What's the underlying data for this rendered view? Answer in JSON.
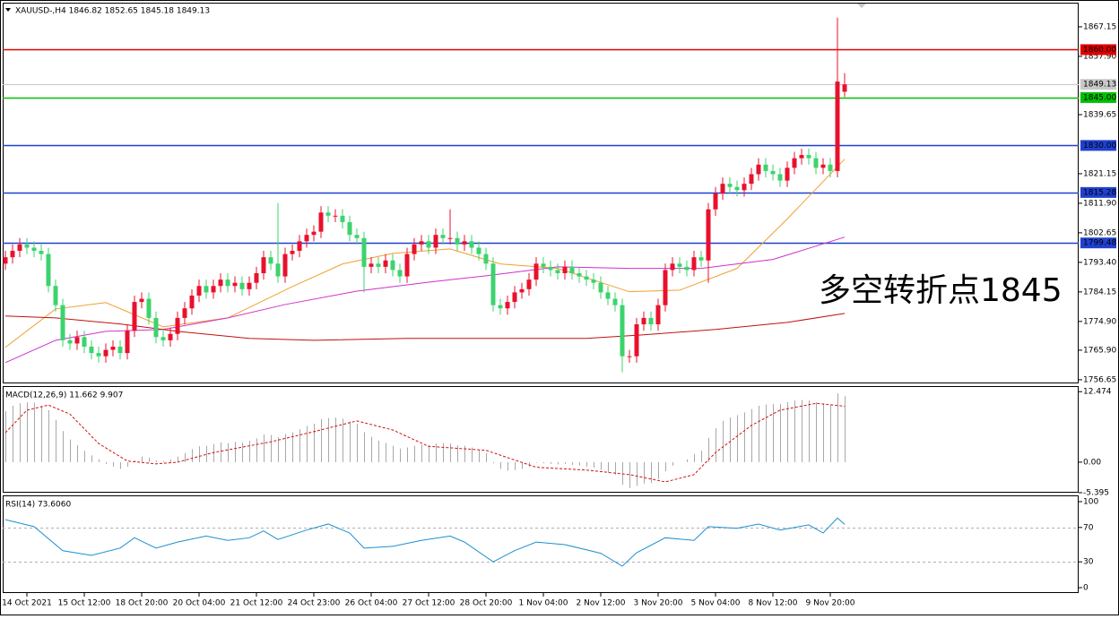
{
  "chart_data": [
    {
      "type": "candlestick",
      "title": "XAUUSD-,H4  1846.82 1852.65 1845.18 1849.13",
      "annotation": "多空转折点1845",
      "categories": [
        null,
        null,
        null,
        "14 Oct 2021",
        null,
        null,
        null,
        null,
        null,
        null,
        null,
        "15 Oct 12:00",
        null,
        null,
        null,
        null,
        null,
        null,
        null,
        "18 Oct 20:00",
        null,
        null,
        null,
        null,
        null,
        null,
        null,
        "20 Oct 04:00",
        null,
        null,
        null,
        null,
        null,
        null,
        null,
        "21 Oct 12:00",
        null,
        null,
        null,
        null,
        null,
        null,
        null,
        "24 Oct 23:00",
        null,
        null,
        null,
        null,
        null,
        null,
        null,
        "26 Oct 04:00",
        null,
        null,
        null,
        null,
        null,
        null,
        null,
        "27 Oct 12:00",
        null,
        null,
        null,
        null,
        null,
        null,
        null,
        "28 Oct 20:00",
        null,
        null,
        null,
        null,
        null,
        null,
        null,
        "1 Nov 04:00",
        null,
        null,
        null,
        null,
        null,
        null,
        null,
        "2 Nov 12:00",
        null,
        null,
        null,
        null,
        null,
        null,
        null,
        "3 Nov 20:00",
        null,
        null,
        null,
        null,
        null,
        null,
        null,
        "5 Nov 04:00",
        null,
        null,
        null,
        null,
        null,
        null,
        null,
        "8 Nov 12:00",
        null,
        null,
        null,
        null,
        null,
        null,
        null,
        "9 Nov 20:00",
        null,
        null
      ],
      "open": [
        1793,
        1795,
        1797,
        1799,
        1798,
        1797,
        1796,
        1786,
        1780,
        1769,
        1768,
        1770,
        1767,
        1765,
        1764,
        1766,
        1767,
        1765,
        1772,
        1781,
        1782,
        1776,
        1770,
        1769,
        1771,
        1776,
        1779,
        1783,
        1786,
        1784,
        1786,
        1788,
        1786,
        1787,
        1785,
        1787,
        1790,
        1795,
        1793,
        1789,
        1796,
        1797,
        1800,
        1802,
        1803,
        1809,
        1808,
        1808,
        1806,
        1802,
        1801,
        1792,
        1793,
        1792,
        1794,
        1791,
        1789,
        1796,
        1799,
        1800,
        1798,
        1802,
        1801,
        1801,
        1799,
        1800,
        1798,
        1796,
        1793,
        1780,
        1779,
        1781,
        1784,
        1785,
        1788,
        1793,
        1792,
        1791,
        1790,
        1792,
        1790,
        1789,
        1788,
        1787,
        1784,
        1782,
        1780,
        1764,
        1764,
        1774,
        1776,
        1774,
        1780,
        1791,
        1793,
        1792,
        1791,
        1795,
        1794,
        1810,
        1815,
        1818,
        1817,
        1816,
        1818,
        1821,
        1824,
        1822,
        1821,
        1819,
        1823,
        1826,
        1827,
        1826,
        1823,
        1824,
        1822,
        1846.82
      ],
      "high": [
        1797,
        1799,
        1801,
        1801,
        1800,
        1799,
        1798,
        1788,
        1782,
        1771,
        1772,
        1772,
        1769,
        1767,
        1768,
        1769,
        1769,
        1774,
        1783,
        1784,
        1784,
        1778,
        1772,
        1773,
        1778,
        1781,
        1785,
        1788,
        1788,
        1788,
        1790,
        1790,
        1789,
        1789,
        1789,
        1792,
        1797,
        1797,
        1812,
        1798,
        1799,
        1802,
        1804,
        1805,
        1811,
        1811,
        1810,
        1810,
        1808,
        1804,
        1803,
        1795,
        1795,
        1796,
        1796,
        1793,
        1798,
        1801,
        1802,
        1802,
        1804,
        1804,
        1810,
        1803,
        1802,
        1802,
        1800,
        1798,
        1795,
        1782,
        1783,
        1786,
        1787,
        1790,
        1795,
        1795,
        1794,
        1793,
        1794,
        1794,
        1792,
        1791,
        1790,
        1789,
        1786,
        1784,
        1782,
        1766,
        1776,
        1778,
        1778,
        1782,
        1793,
        1795,
        1795,
        1794,
        1797,
        1797,
        1812,
        1817,
        1820,
        1820,
        1819,
        1820,
        1823,
        1826,
        1826,
        1824,
        1823,
        1825,
        1828,
        1829,
        1829,
        1828,
        1826,
        1826,
        1870,
        1852.65
      ],
      "low": [
        1791,
        1793,
        1795,
        1796,
        1795,
        1794,
        1784,
        1778,
        1767,
        1766,
        1766,
        1765,
        1763,
        1762,
        1762,
        1764,
        1763,
        1763,
        1770,
        1779,
        1774,
        1768,
        1767,
        1767,
        1769,
        1774,
        1777,
        1781,
        1782,
        1782,
        1784,
        1784,
        1784,
        1783,
        1783,
        1785,
        1788,
        1791,
        1787,
        1787,
        1794,
        1795,
        1798,
        1800,
        1801,
        1806,
        1806,
        1804,
        1800,
        1799,
        1784,
        1790,
        1790,
        1790,
        1789,
        1787,
        1787,
        1794,
        1797,
        1796,
        1796,
        1799,
        1799,
        1797,
        1797,
        1796,
        1794,
        1791,
        1778,
        1777,
        1777,
        1779,
        1782,
        1783,
        1786,
        1790,
        1789,
        1788,
        1788,
        1788,
        1787,
        1786,
        1785,
        1782,
        1780,
        1778,
        1759,
        1762,
        1762,
        1772,
        1772,
        1772,
        1778,
        1789,
        1790,
        1789,
        1789,
        1792,
        1787,
        1808,
        1813,
        1815,
        1814,
        1814,
        1816,
        1819,
        1820,
        1819,
        1817,
        1817,
        1821,
        1824,
        1824,
        1821,
        1821,
        1820,
        1820,
        1845.18
      ],
      "close": [
        1795,
        1797,
        1799,
        1798,
        1797,
        1796,
        1786,
        1780,
        1769,
        1768,
        1770,
        1767,
        1765,
        1764,
        1766,
        1767,
        1765,
        1772,
        1781,
        1782,
        1776,
        1770,
        1769,
        1771,
        1776,
        1779,
        1783,
        1786,
        1784,
        1786,
        1788,
        1786,
        1787,
        1785,
        1787,
        1790,
        1795,
        1793,
        1789,
        1796,
        1797,
        1800,
        1802,
        1803,
        1809,
        1808,
        1808,
        1806,
        1802,
        1801,
        1792,
        1793,
        1792,
        1794,
        1791,
        1789,
        1796,
        1799,
        1800,
        1798,
        1802,
        1801,
        1801,
        1799,
        1800,
        1798,
        1796,
        1793,
        1780,
        1779,
        1781,
        1784,
        1785,
        1788,
        1793,
        1792,
        1791,
        1790,
        1792,
        1790,
        1789,
        1788,
        1787,
        1784,
        1782,
        1780,
        1764,
        1764,
        1774,
        1776,
        1774,
        1780,
        1791,
        1793,
        1792,
        1791,
        1795,
        1794,
        1810,
        1815,
        1818,
        1817,
        1816,
        1818,
        1821,
        1824,
        1822,
        1821,
        1819,
        1823,
        1826,
        1827,
        1826,
        1823,
        1824,
        1822,
        1850,
        1849.13
      ],
      "up_color": "#e8112d",
      "down_color": "#3cd36d",
      "series": [
        {
          "color": "#f0a030",
          "x": [
            0,
            7,
            14,
            22,
            31,
            40,
            47,
            54,
            62,
            69,
            77,
            87,
            94,
            102,
            109,
            117
          ],
          "values": [
            1766.8,
            1778.8,
            1780.8,
            1773.2,
            1776,
            1785.8,
            1792.9,
            1796.2,
            1797.6,
            1792.9,
            1791.5,
            1784.2,
            1784.7,
            1791.5,
            1807,
            1825.7
          ]
        },
        {
          "color": "#d030d0",
          "x": [
            0,
            7,
            14,
            22,
            31,
            39,
            49,
            59,
            67,
            77,
            87,
            97,
            107,
            117
          ],
          "values": [
            1762,
            1769,
            1771.8,
            1772.4,
            1776,
            1780.2,
            1784.4,
            1787.2,
            1789.2,
            1792,
            1791.5,
            1791.5,
            1794.3,
            1801.3
          ]
        },
        {
          "color": "#c01010",
          "x": [
            0,
            7,
            16,
            24,
            34,
            43,
            56,
            68,
            81,
            89,
            99,
            109,
            117
          ],
          "values": [
            1776.6,
            1776,
            1774.1,
            1771.8,
            1769.6,
            1769,
            1769.6,
            1769.6,
            1769.6,
            1770.7,
            1772.4,
            1774.6,
            1777.4
          ]
        }
      ],
      "levels": [
        {
          "value": 1860,
          "label": "1860.00",
          "color": "#e00000",
          "text_color": "#ffffff"
        },
        {
          "value": 1849.13,
          "color": "#c8c8c8",
          "text_color": "#000000"
        },
        {
          "value": 1845,
          "label": "1845.00",
          "color": "#00c000",
          "text_color": "#ffffff"
        },
        {
          "value": 1830,
          "label": "1830.00",
          "color": "#2040d0",
          "text_color": "#ffffff"
        },
        {
          "value": 1815.28,
          "color": "#2040d0",
          "text_color": "#ffffff"
        },
        {
          "value": 1799.48,
          "color": "#2040d0",
          "text_color": "#ffffff"
        }
      ],
      "ylim": [
        1755.5,
        1874.7
      ],
      "yticks": [
        1867.15,
        {
          "value": 1857.9,
          "label": "1857.90"
        },
        1839.65,
        1821.15,
        {
          "value": 1811.9,
          "label": "1811.90"
        },
        1802.65,
        {
          "value": 1793.4,
          "label": "1793.40"
        },
        1784.15,
        {
          "value": 1774.9,
          "label": "1774.90"
        },
        {
          "value": 1765.9,
          "label": "1765.90"
        },
        1756.65
      ]
    },
    {
      "type": "macd",
      "title": "MACD(12,26,9) 11.662 9.907",
      "color": "#a8a8a8",
      "values": [
        9,
        10,
        10.4,
        10.6,
        10.5,
        10,
        9.2,
        7.5,
        5.5,
        4,
        3,
        2,
        1.2,
        0.5,
        -0.3,
        -0.8,
        -1.2,
        -0.8,
        0.3,
        1,
        0.8,
        0.3,
        0.2,
        0.5,
        1,
        1.6,
        2.3,
        2.8,
        2.9,
        3.2,
        3.5,
        3.4,
        3.6,
        3.5,
        3.8,
        4.2,
        4.9,
        4.8,
        4.4,
        5,
        5.3,
        5.8,
        6.4,
        6.8,
        7.6,
        7.8,
        7.9,
        7.7,
        7.2,
        6.8,
        5.3,
        4.5,
        3.8,
        3.4,
        2.9,
        2.4,
        2.6,
        2.9,
        3.1,
        3,
        3.3,
        3.4,
        3.3,
        3,
        2.9,
        2.6,
        2.2,
        1.6,
        -0.2,
        -1.2,
        -1.5,
        -1.4,
        -1.2,
        -0.8,
        -0.1,
        -0.2,
        -0.3,
        -0.4,
        -0.3,
        -0.5,
        -0.6,
        -0.8,
        -1,
        -1.4,
        -1.8,
        -2.2,
        -4,
        -4.6,
        -4.2,
        -3.8,
        -3.7,
        -3,
        -1.6,
        -0.6,
        0,
        0.5,
        1.5,
        2,
        4.3,
        6,
        7.3,
        7.9,
        8.3,
        8.8,
        9.4,
        10,
        10.2,
        10.3,
        10.3,
        10.6,
        10.9,
        11,
        10.9,
        10.6,
        10.4,
        10.2,
        12.2,
        11.662
      ],
      "series": [
        {
          "color": "#d01010",
          "dash": true,
          "x": [
            0,
            3,
            6,
            9,
            13,
            17,
            21,
            24,
            29,
            37,
            43,
            49,
            54,
            59,
            67,
            74,
            81,
            87,
            92,
            96,
            99,
            104,
            108,
            113,
            117
          ],
          "values": [
            5.2,
            9.2,
            10.1,
            8.5,
            3.3,
            0.2,
            -0.3,
            0,
            1.7,
            3.6,
            5.4,
            7.3,
            5.7,
            2.8,
            2.1,
            -0.9,
            -1.4,
            -2.2,
            -3.5,
            -2.2,
            1.7,
            6.5,
            9.2,
            10.4,
            9.907
          ]
        }
      ],
      "ylim": [
        -5.4,
        13.3
      ],
      "yticks": [
        12.474,
        {
          "value": 0,
          "label": "0.00"
        },
        -5.395
      ]
    },
    {
      "type": "rsi",
      "title": "RSI(14) 73.6060",
      "series": [
        {
          "color": "#1e8fd0",
          "x": [
            0,
            4,
            8,
            12,
            16,
            18,
            21,
            24,
            28,
            31,
            34,
            36,
            38,
            42,
            45,
            48,
            50,
            54,
            58,
            62,
            64,
            68,
            71,
            74,
            78,
            83,
            86,
            88,
            92,
            96,
            98,
            102,
            105,
            108,
            112,
            114,
            116,
            117
          ],
          "values": [
            79,
            71,
            43,
            37.5,
            46,
            58,
            46,
            53,
            60,
            55,
            58,
            66,
            56,
            67,
            74,
            63.5,
            46,
            48,
            55,
            60,
            53,
            30,
            43,
            53,
            50,
            40,
            25,
            40.6,
            58,
            55,
            71,
            69,
            74,
            67,
            73,
            63.5,
            81,
            73.606
          ]
        }
      ],
      "levels": [
        70,
        30
      ],
      "ylim": [
        -6.25,
        106.25
      ],
      "yticks": [
        100,
        70,
        30,
        0
      ]
    }
  ]
}
